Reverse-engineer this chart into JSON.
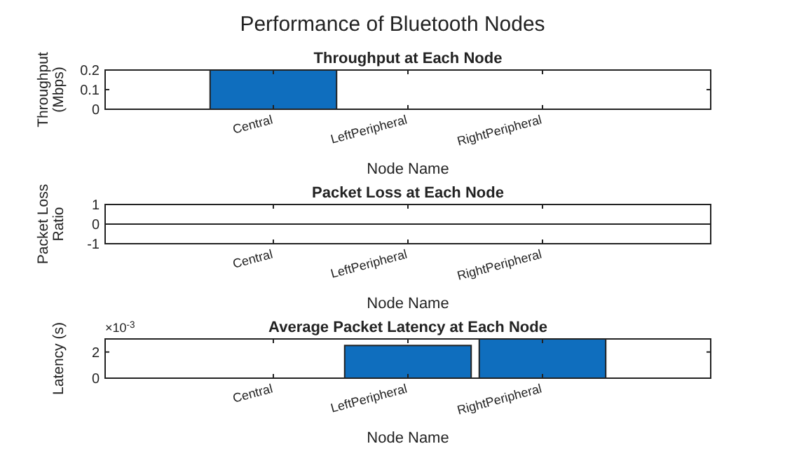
{
  "chart_data": [
    {
      "type": "bar",
      "title": "Throughput at Each Node",
      "xlabel": "Node Name",
      "ylabel": "Throughput (Mbps)",
      "annotations": [
        "Performance of Bluetooth Nodes"
      ],
      "categories": [
        "Central",
        "LeftPeripheral",
        "RightPeripheral"
      ],
      "values": [
        0.2,
        0,
        0
      ],
      "color": "#0f6ebe",
      "ylim": [
        0,
        0.2
      ],
      "yticks": [
        0,
        0.1,
        0.2
      ],
      "grid": false
    },
    {
      "type": "bar",
      "title": "Packet Loss at Each Node",
      "xlabel": "Node Name",
      "ylabel": "Packet Loss Ratio",
      "categories": [
        "Central",
        "LeftPeripheral",
        "RightPeripheral"
      ],
      "values": [
        0,
        0,
        0
      ],
      "color": "#0f6ebe",
      "ylim": [
        -1,
        1
      ],
      "yticks": [
        -1,
        0,
        1
      ],
      "ref_lines": [
        {
          "axis": "y",
          "value": 0,
          "color": "#222222"
        }
      ],
      "grid": false
    },
    {
      "type": "bar",
      "title": "Average Packet Latency at Each Node",
      "xlabel": "Node Name",
      "ylabel": "Latency (s)",
      "annotations": [
        "×10$^{-3}$"
      ],
      "categories": [
        "Central",
        "LeftPeripheral",
        "RightPeripheral"
      ],
      "values": [
        0,
        2.5,
        3
      ],
      "color": "#0f6ebe",
      "ylim": [
        0,
        3
      ],
      "yticks": [
        0,
        2
      ],
      "grid": false
    }
  ]
}
